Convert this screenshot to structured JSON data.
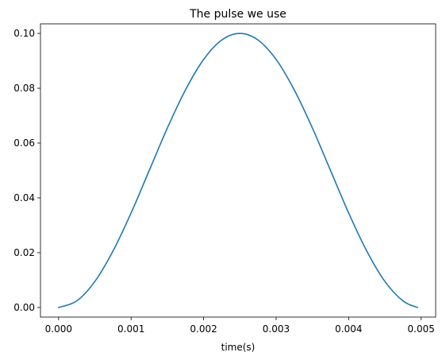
{
  "chart_data": {
    "type": "line",
    "title": "The pulse we use",
    "xlabel": "time(s)",
    "ylabel": "",
    "xlim": [
      -0.00025,
      0.0052
    ],
    "ylim": [
      -0.0035,
      0.1035
    ],
    "xticks": [
      0.0,
      0.001,
      0.002,
      0.003,
      0.004,
      0.005
    ],
    "xtick_labels": [
      "0.000",
      "0.001",
      "0.002",
      "0.003",
      "0.004",
      "0.005"
    ],
    "yticks": [
      0.0,
      0.02,
      0.04,
      0.06,
      0.08,
      0.1
    ],
    "ytick_labels": [
      "0.00",
      "0.02",
      "0.04",
      "0.06",
      "0.08",
      "0.10"
    ],
    "grid": false,
    "legend": "none",
    "series": [
      {
        "color": "#1f77b4",
        "x": [
          0.0,
          0.00025,
          0.0005,
          0.00075,
          0.001,
          0.00125,
          0.0015,
          0.00175,
          0.002,
          0.00225,
          0.0025,
          0.00275,
          0.003,
          0.00325,
          0.0035,
          0.00375,
          0.004,
          0.00425,
          0.0045,
          0.00475,
          0.00495
        ],
        "y": [
          0.0,
          0.0024,
          0.0095,
          0.0206,
          0.0345,
          0.05,
          0.0655,
          0.0794,
          0.0905,
          0.0976,
          0.1,
          0.0976,
          0.0905,
          0.0794,
          0.0655,
          0.05,
          0.0345,
          0.0206,
          0.0095,
          0.0024,
          0.0
        ]
      }
    ]
  }
}
